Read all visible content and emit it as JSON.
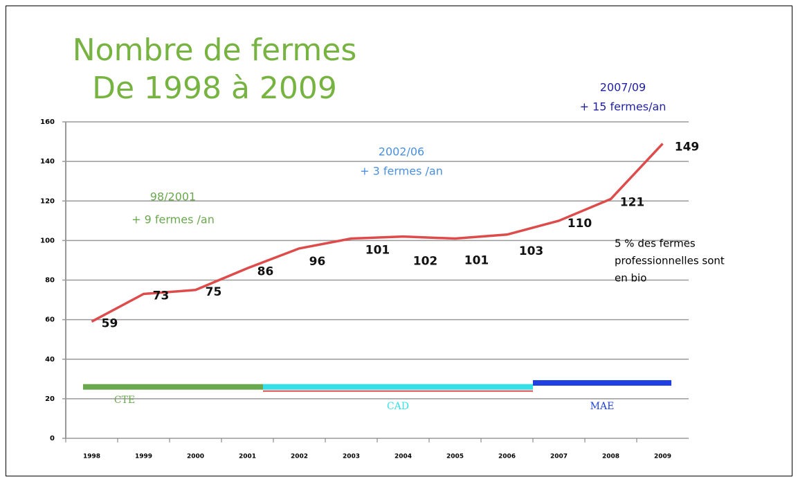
{
  "chart_data": {
    "type": "line",
    "title": [
      "Nombre de fermes",
      "De 1998 à 2009"
    ],
    "categories": [
      "1998",
      "1999",
      "2000",
      "2001",
      "2002",
      "2003",
      "2004",
      "2005",
      "2006",
      "2007",
      "2008",
      "2009"
    ],
    "series": [
      {
        "color": "#dd4b4b",
        "values": [
          59,
          73,
          75,
          86,
          96,
          101,
          102,
          101,
          103,
          110,
          121,
          149
        ]
      }
    ],
    "ylim": [
      0,
      160
    ],
    "yticks": [
      0,
      20,
      40,
      60,
      80,
      100,
      120,
      140,
      160
    ],
    "grid": true,
    "annotations": [
      {
        "lines": [
          "98/2001",
          "+ 9 fermes /an"
        ],
        "color": "#6aa84f"
      },
      {
        "lines": [
          "2002/06",
          "+ 3 fermes /an"
        ],
        "color": "#4a8fe0"
      },
      {
        "lines": [
          "2007/09",
          "+ 15 fermes/an"
        ],
        "color": "#1f1fa0"
      },
      {
        "lines": [
          "5 % des fermes",
          "professionnelles sont",
          "en bio"
        ],
        "color": "#000000"
      }
    ],
    "bands": [
      {
        "label": "CTE",
        "color": "#6aa84f"
      },
      {
        "label": "CAD",
        "color": "#33e0e8"
      },
      {
        "label": "MAE",
        "color": "#1f3fe0"
      }
    ]
  }
}
